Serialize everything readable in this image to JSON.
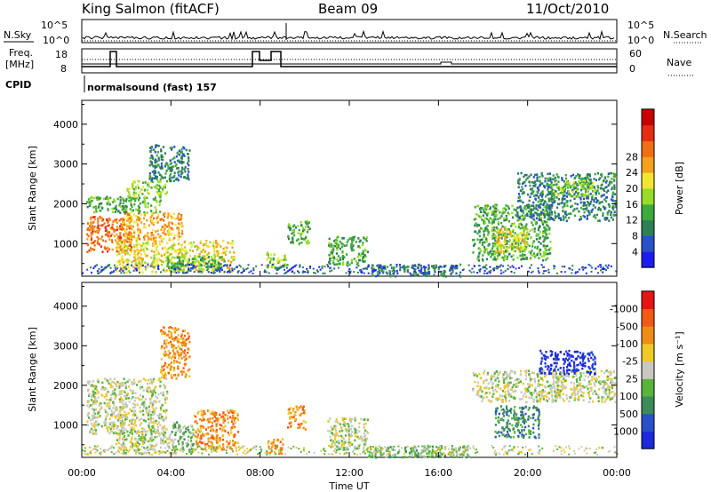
{
  "header": {
    "station": "King Salmon (fitACF)",
    "beam": "Beam 09",
    "date": "11/Oct/2010"
  },
  "top_panels": {
    "nsky_label": "N.Sky",
    "nsearch_label": "N.Search",
    "noise_ticks": [
      "10^5",
      "10^0"
    ],
    "freq_label_1": "Freq.",
    "freq_label_2": "[MHz]",
    "freq_ticks": [
      "18",
      "8"
    ],
    "nave_label": "Nave",
    "nave_ticks": [
      "60",
      "0"
    ],
    "cpid_label": "CPID",
    "cpid_text": "normalsound (fast) 157"
  },
  "chart_data": [
    {
      "type": "heatmap",
      "name": "power",
      "ylabel": "Slant Range [km]",
      "xlabel": "",
      "colorbar_label": "Power [dB]",
      "xlim": [
        0,
        24
      ],
      "ylim": [
        180,
        4600
      ],
      "colorbar_ticks": [
        "4",
        "8",
        "12",
        "16",
        "20",
        "24",
        "28"
      ],
      "colorbar_colors": [
        "#1c1cf0",
        "#2850c8",
        "#2e7f55",
        "#3caa3c",
        "#96dc28",
        "#f0e632",
        "#f5a01e",
        "#f06e14",
        "#e62d14",
        "#c80000"
      ],
      "regions": [
        {
          "t0": 0.2,
          "t1": 2.2,
          "r0": 800,
          "r1": 1700,
          "level": 7
        },
        {
          "t0": 1.8,
          "t1": 4.5,
          "r0": 1100,
          "r1": 1800,
          "level": 6
        },
        {
          "t0": 0.2,
          "t1": 3.5,
          "r0": 1800,
          "r1": 2200,
          "level": 3
        },
        {
          "t0": 2.0,
          "t1": 3.8,
          "r0": 2200,
          "r1": 2600,
          "level": 4
        },
        {
          "t0": 3.0,
          "t1": 4.8,
          "r0": 2600,
          "r1": 3500,
          "level": 2
        },
        {
          "t0": 1.5,
          "t1": 6.8,
          "r0": 300,
          "r1": 1100,
          "level": 5
        },
        {
          "t0": 3.8,
          "t1": 6.5,
          "r0": 300,
          "r1": 700,
          "level": 3
        },
        {
          "t0": 8.2,
          "t1": 9.2,
          "r0": 400,
          "r1": 800,
          "level": 4
        },
        {
          "t0": 9.2,
          "t1": 10.2,
          "r0": 1000,
          "r1": 1600,
          "level": 3
        },
        {
          "t0": 11.0,
          "t1": 12.8,
          "r0": 500,
          "r1": 1200,
          "level": 3
        },
        {
          "t0": 12.8,
          "t1": 17.0,
          "r0": 200,
          "r1": 500,
          "level": 2
        },
        {
          "t0": 17.5,
          "t1": 21.0,
          "r0": 600,
          "r1": 2000,
          "level": 3
        },
        {
          "t0": 18.5,
          "t1": 20.0,
          "r0": 800,
          "r1": 1400,
          "level": 5
        },
        {
          "t0": 19.5,
          "t1": 23.9,
          "r0": 1600,
          "r1": 2800,
          "level": 2
        },
        {
          "t0": 21.0,
          "t1": 23.0,
          "r0": 2200,
          "r1": 2600,
          "level": 4
        }
      ]
    },
    {
      "type": "heatmap",
      "name": "velocity",
      "ylabel": "Slant Range [km]",
      "xlabel": "Time UT",
      "colorbar_label": "Velocity [m s⁻¹]",
      "xlim": [
        0,
        24
      ],
      "ylim": [
        180,
        4600
      ],
      "xticks": [
        "00:00",
        "04:00",
        "08:00",
        "12:00",
        "16:00",
        "20:00",
        "00:00"
      ],
      "colorbar_ticks": [
        "1000",
        "500",
        "100",
        "25",
        "-25",
        "-100",
        "-500",
        "-1000"
      ],
      "colorbar_colors": [
        "#1e28dc",
        "#2850c8",
        "#3c8c5a",
        "#5ab43c",
        "#c8c8c0",
        "#f0c828",
        "#f08c14",
        "#f05a14",
        "#e61414"
      ],
      "regions": [
        {
          "t0": 0.2,
          "t1": 3.8,
          "r0": 800,
          "r1": 2200,
          "level": 4
        },
        {
          "t0": 3.5,
          "t1": 4.8,
          "r0": 2200,
          "r1": 3500,
          "level": 6
        },
        {
          "t0": 1.5,
          "t1": 4.0,
          "r0": 300,
          "r1": 900,
          "level": 4
        },
        {
          "t0": 4.0,
          "t1": 5.0,
          "r0": 300,
          "r1": 1100,
          "level": 3
        },
        {
          "t0": 5.0,
          "t1": 7.0,
          "r0": 400,
          "r1": 1400,
          "level": 6
        },
        {
          "t0": 8.2,
          "t1": 9.0,
          "r0": 300,
          "r1": 700,
          "level": 6
        },
        {
          "t0": 9.2,
          "t1": 10.0,
          "r0": 900,
          "r1": 1500,
          "level": 6
        },
        {
          "t0": 11.0,
          "t1": 12.8,
          "r0": 400,
          "r1": 1200,
          "level": 4
        },
        {
          "t0": 12.8,
          "t1": 17.5,
          "r0": 200,
          "r1": 500,
          "level": 3
        },
        {
          "t0": 17.5,
          "t1": 23.9,
          "r0": 1600,
          "r1": 2400,
          "level": 4
        },
        {
          "t0": 18.5,
          "t1": 20.5,
          "r0": 700,
          "r1": 1500,
          "level": 2
        },
        {
          "t0": 20.5,
          "t1": 23.0,
          "r0": 2300,
          "r1": 2900,
          "level": 0
        }
      ]
    }
  ]
}
